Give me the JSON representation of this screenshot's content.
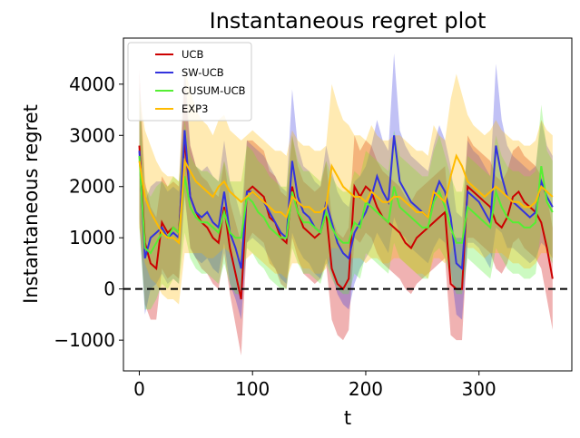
{
  "chart_data": {
    "type": "line",
    "title": "Instantaneous regret plot",
    "xlabel": "t",
    "ylabel": "Instantaneous regret",
    "xlim": [
      -14,
      382
    ],
    "ylim": [
      -1600,
      4900
    ],
    "xticks": [
      0,
      100,
      200,
      300
    ],
    "yticks": [
      -1000,
      0,
      1000,
      2000,
      3000,
      4000
    ],
    "ytick_labels": [
      "−1000",
      "0",
      "1000",
      "2000",
      "3000",
      "4000"
    ],
    "reference_line": {
      "y": 0,
      "style": "dashed",
      "color": "#000000"
    },
    "legend": {
      "placement": "upper-left"
    },
    "series": [
      {
        "name": "UCB",
        "color": "#cc0000",
        "x": [
          0,
          5,
          10,
          15,
          20,
          25,
          30,
          35,
          40,
          45,
          50,
          55,
          60,
          65,
          70,
          75,
          80,
          85,
          90,
          95,
          100,
          105,
          110,
          115,
          120,
          125,
          130,
          135,
          140,
          145,
          150,
          155,
          160,
          165,
          170,
          175,
          180,
          185,
          190,
          195,
          200,
          205,
          210,
          215,
          220,
          225,
          230,
          235,
          240,
          245,
          250,
          255,
          260,
          265,
          270,
          275,
          280,
          285,
          290,
          295,
          300,
          305,
          310,
          315,
          320,
          325,
          330,
          335,
          340,
          345,
          350,
          355,
          360,
          365
        ],
        "values": [
          2800,
          900,
          500,
          400,
          1300,
          1100,
          1200,
          1100,
          2900,
          1800,
          1500,
          1300,
          1200,
          1000,
          900,
          1600,
          800,
          300,
          -200,
          1900,
          2000,
          1900,
          1800,
          1400,
          1300,
          1000,
          900,
          2000,
          1500,
          1200,
          1100,
          1000,
          1100,
          1500,
          400,
          100,
          0,
          200,
          2000,
          1800,
          2000,
          1900,
          1600,
          1400,
          1300,
          1200,
          1100,
          900,
          800,
          1000,
          1100,
          1200,
          1300,
          1400,
          1500,
          100,
          0,
          0,
          2000,
          1900,
          1800,
          1700,
          1600,
          1300,
          1200,
          1400,
          1800,
          1900,
          1700,
          1600,
          1500,
          1300,
          800,
          200
        ],
        "band": [
          1500,
          1200,
          1100,
          1000,
          900,
          900,
          900,
          900,
          1000,
          1000,
          900,
          900,
          900,
          900,
          900,
          900,
          900,
          1000,
          1100,
          1000,
          900,
          900,
          900,
          900,
          900,
          900,
          900,
          1000,
          900,
          900,
          900,
          900,
          900,
          1000,
          1000,
          1000,
          1000,
          1000,
          1000,
          900,
          900,
          900,
          900,
          900,
          900,
          900,
          900,
          900,
          900,
          900,
          900,
          900,
          900,
          900,
          900,
          1000,
          1000,
          1000,
          1000,
          900,
          900,
          900,
          900,
          900,
          900,
          900,
          900,
          900,
          900,
          900,
          900,
          900,
          1000,
          1000
        ]
      },
      {
        "name": "SW-UCB",
        "color": "#3333dd",
        "x": [
          0,
          5,
          10,
          15,
          20,
          25,
          30,
          35,
          40,
          45,
          50,
          55,
          60,
          65,
          70,
          75,
          80,
          85,
          90,
          95,
          100,
          105,
          110,
          115,
          120,
          125,
          130,
          135,
          140,
          145,
          150,
          155,
          160,
          165,
          170,
          175,
          180,
          185,
          190,
          195,
          200,
          205,
          210,
          215,
          220,
          225,
          230,
          235,
          240,
          245,
          250,
          255,
          260,
          265,
          270,
          275,
          280,
          285,
          290,
          295,
          300,
          305,
          310,
          315,
          320,
          325,
          330,
          335,
          340,
          345,
          350,
          355,
          360,
          365
        ],
        "values": [
          2700,
          600,
          1000,
          1100,
          1200,
          1000,
          1100,
          1000,
          3100,
          1800,
          1500,
          1400,
          1500,
          1300,
          1200,
          1900,
          1100,
          800,
          400,
          1900,
          1900,
          1800,
          1700,
          1500,
          1300,
          1100,
          1000,
          2500,
          1800,
          1500,
          1400,
          1200,
          1100,
          1700,
          1300,
          900,
          700,
          600,
          1100,
          1300,
          1500,
          1800,
          2200,
          1900,
          1700,
          3000,
          2100,
          1900,
          1700,
          1600,
          1500,
          1400,
          1800,
          2100,
          1900,
          1400,
          500,
          400,
          1900,
          1800,
          1700,
          1500,
          1300,
          2800,
          2200,
          1800,
          1700,
          1600,
          1500,
          1400,
          1500,
          2100,
          1800,
          1600
        ],
        "band": [
          1300,
          1100,
          1000,
          1000,
          900,
          900,
          900,
          900,
          1300,
          1000,
          900,
          900,
          900,
          900,
          900,
          1000,
          1000,
          1000,
          1000,
          1000,
          900,
          900,
          900,
          900,
          900,
          900,
          900,
          1400,
          1000,
          900,
          900,
          900,
          900,
          1100,
          1000,
          1000,
          1000,
          1000,
          1000,
          900,
          900,
          1000,
          1100,
          1000,
          1000,
          1600,
          1000,
          900,
          900,
          900,
          900,
          900,
          1000,
          1100,
          1000,
          1000,
          1000,
          1000,
          1000,
          900,
          900,
          900,
          900,
          1600,
          1100,
          1000,
          900,
          900,
          900,
          900,
          900,
          1200,
          1000,
          1000
        ]
      },
      {
        "name": "CUSUM-UCB",
        "color": "#55ee33",
        "x": [
          0,
          5,
          10,
          15,
          20,
          25,
          30,
          35,
          40,
          45,
          50,
          55,
          60,
          65,
          70,
          75,
          80,
          85,
          90,
          95,
          100,
          105,
          110,
          115,
          120,
          125,
          130,
          135,
          140,
          145,
          150,
          155,
          160,
          165,
          170,
          175,
          180,
          185,
          190,
          195,
          200,
          205,
          210,
          215,
          220,
          225,
          230,
          235,
          240,
          245,
          250,
          255,
          260,
          265,
          270,
          275,
          280,
          285,
          290,
          295,
          300,
          305,
          310,
          315,
          320,
          325,
          330,
          335,
          340,
          345,
          350,
          355,
          360,
          365
        ],
        "values": [
          2600,
          800,
          700,
          900,
          1100,
          1000,
          1200,
          1100,
          2200,
          1600,
          1400,
          1300,
          1300,
          1200,
          1100,
          1500,
          1100,
          1000,
          1000,
          1800,
          1700,
          1500,
          1400,
          1200,
          1100,
          1000,
          1000,
          1900,
          1500,
          1300,
          1300,
          1200,
          1100,
          1500,
          1200,
          1000,
          900,
          900,
          1300,
          1200,
          1700,
          1600,
          1500,
          1400,
          1300,
          2000,
          1600,
          1500,
          1400,
          1300,
          1200,
          1200,
          1700,
          1900,
          1600,
          1200,
          900,
          900,
          1600,
          1500,
          1400,
          1300,
          1200,
          1900,
          1600,
          1400,
          1300,
          1300,
          1200,
          1200,
          1300,
          2400,
          1700,
          1500
        ],
        "band": [
          1400,
          1200,
          1100,
          1100,
          1000,
          1000,
          1000,
          1000,
          1100,
          1000,
          1000,
          1000,
          1000,
          1000,
          1000,
          1000,
          1000,
          1100,
          1100,
          1000,
          1000,
          1000,
          1000,
          1000,
          1000,
          1000,
          1000,
          1100,
          1000,
          1000,
          1000,
          1000,
          1000,
          1000,
          1000,
          1000,
          1000,
          1000,
          1000,
          1000,
          1000,
          1000,
          1000,
          1000,
          1000,
          1100,
          1000,
          1000,
          1000,
          1000,
          1000,
          1000,
          1000,
          1100,
          1000,
          1000,
          1000,
          1000,
          1000,
          1000,
          1000,
          1000,
          1000,
          1100,
          1000,
          1000,
          1000,
          1000,
          1000,
          1000,
          1000,
          1200,
          1000,
          1000
        ]
      },
      {
        "name": "EXP3",
        "color": "#ffbb00",
        "x": [
          0,
          5,
          10,
          15,
          20,
          25,
          30,
          35,
          40,
          45,
          50,
          55,
          60,
          65,
          70,
          75,
          80,
          85,
          90,
          95,
          100,
          105,
          110,
          115,
          120,
          125,
          130,
          135,
          140,
          145,
          150,
          155,
          160,
          165,
          170,
          175,
          180,
          185,
          190,
          195,
          200,
          205,
          210,
          215,
          220,
          225,
          230,
          235,
          240,
          245,
          250,
          255,
          260,
          265,
          270,
          275,
          280,
          285,
          290,
          295,
          300,
          305,
          310,
          315,
          320,
          325,
          330,
          335,
          340,
          345,
          350,
          355,
          360,
          365
        ],
        "values": [
          2500,
          1800,
          1500,
          1300,
          1100,
          1000,
          1000,
          900,
          2500,
          2300,
          2100,
          2000,
          1900,
          1800,
          2000,
          2100,
          1900,
          1800,
          1700,
          1800,
          1900,
          1800,
          1700,
          1600,
          1500,
          1500,
          1400,
          1800,
          1700,
          1600,
          1600,
          1500,
          1500,
          1600,
          2400,
          2200,
          2000,
          1900,
          1800,
          1800,
          1700,
          1900,
          1800,
          1700,
          1700,
          1800,
          1800,
          1700,
          1600,
          1500,
          1500,
          1400,
          1900,
          1800,
          1700,
          2200,
          2600,
          2400,
          2100,
          2000,
          1900,
          1800,
          1900,
          2000,
          1900,
          1800,
          1700,
          1700,
          1600,
          1600,
          1700,
          2000,
          1900,
          1800
        ],
        "band": [
          1300,
          1300,
          1300,
          1200,
          1200,
          1200,
          1200,
          1200,
          1800,
          1600,
          1400,
          1300,
          1300,
          1200,
          1300,
          1300,
          1200,
          1200,
          1200,
          1200,
          1200,
          1200,
          1200,
          1200,
          1200,
          1200,
          1200,
          1300,
          1200,
          1200,
          1200,
          1200,
          1200,
          1200,
          1600,
          1400,
          1300,
          1300,
          1200,
          1200,
          1200,
          1300,
          1200,
          1200,
          1200,
          1200,
          1200,
          1200,
          1200,
          1200,
          1200,
          1200,
          1300,
          1200,
          1200,
          1500,
          1600,
          1400,
          1300,
          1200,
          1200,
          1200,
          1200,
          1300,
          1200,
          1200,
          1200,
          1200,
          1200,
          1200,
          1200,
          1300,
          1200,
          1200
        ]
      }
    ]
  }
}
